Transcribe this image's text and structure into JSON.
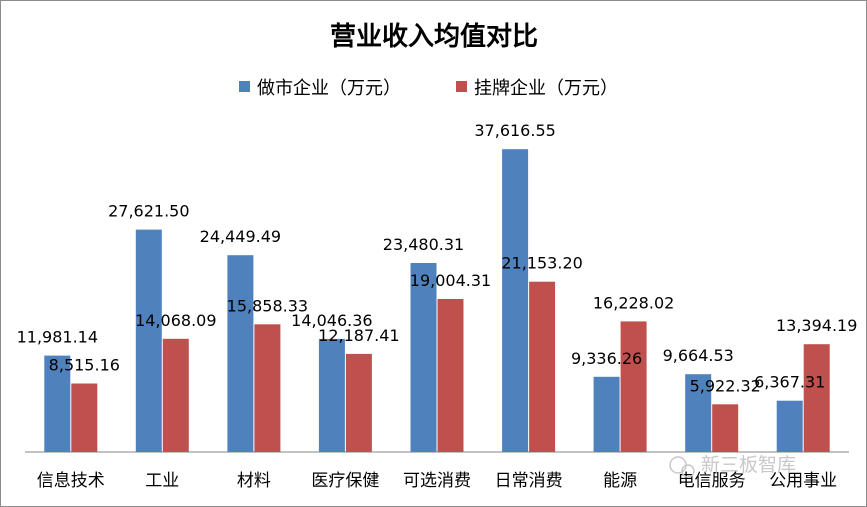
{
  "watermark": "新三板智库",
  "chart_data": {
    "type": "bar",
    "title": "营业收入均值对比",
    "legend_position": "top",
    "grid": false,
    "ylim": [
      0,
      40000
    ],
    "categories": [
      "信息技术",
      "工业",
      "材料",
      "医疗保健",
      "可选消费",
      "日常消费",
      "能源",
      "电信服务",
      "公用事业"
    ],
    "series": [
      {
        "name": "做市企业（万元）",
        "color": "#4f81bd",
        "values": [
          11981.14,
          27621.5,
          24449.49,
          14046.36,
          23480.31,
          37616.55,
          9336.26,
          9664.53,
          6367.31
        ],
        "labels": [
          "11,981.14",
          "27,621.50",
          "24,449.49",
          "14,046.36",
          "23,480.31",
          "37,616.55",
          "9,336.26",
          "9,664.53",
          "6,367.31"
        ]
      },
      {
        "name": "挂牌企业（万元）",
        "color": "#c0504d",
        "values": [
          8515.16,
          14068.09,
          15858.33,
          12187.41,
          19004.31,
          21153.2,
          16228.02,
          5922.32,
          13394.19
        ],
        "labels": [
          "8,515.16",
          "14,068.09",
          "15,858.33",
          "12,187.41",
          "19,004.31",
          "21,153.20",
          "16,228.02",
          "5,922.32",
          "13,394.19"
        ]
      }
    ]
  }
}
